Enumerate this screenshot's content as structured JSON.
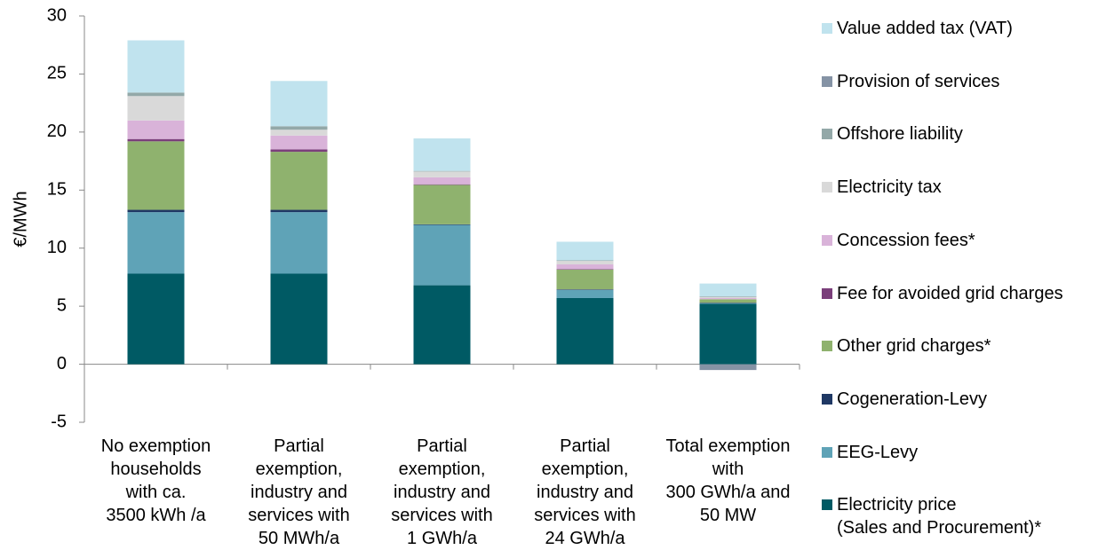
{
  "chart_data": {
    "type": "stacked-bar",
    "y_label": "€/MWh",
    "categories": [
      "No exemption\nhouseholds\nwith ca.\n3500 kWh /a",
      "Partial\nexemption,\nindustry and\nservices with\n50 MWh/a",
      "Partial\nexemption,\nindustry and\nservices with\n1 GWh/a",
      "Partial\nexemption,\nindustry and\nservices with\n24 GWh/a",
      "Total exemption\nwith\n300 GWh/a and\n50 MW"
    ],
    "series": [
      {
        "name": "Electricity price\n(Sales and Procurement)*",
        "color": "#005a64",
        "values": [
          7.8,
          7.8,
          6.8,
          5.7,
          5.2
        ]
      },
      {
        "name": "EEG-Levy",
        "color": "#5fa3b7",
        "values": [
          5.3,
          5.3,
          5.2,
          0.7,
          0.05
        ]
      },
      {
        "name": "Cogeneration-Levy",
        "color": "#1f3864",
        "values": [
          0.2,
          0.2,
          0.05,
          0.05,
          0.05
        ]
      },
      {
        "name": "Other grid charges*",
        "color": "#8fb26e",
        "values": [
          5.9,
          5.0,
          3.4,
          1.7,
          0.3
        ]
      },
      {
        "name": "Fee for avoided grid charges",
        "color": "#7b3f7b",
        "values": [
          0.2,
          0.2,
          0.05,
          0.05,
          0
        ]
      },
      {
        "name": "Concession fees*",
        "color": "#d9b3d9",
        "values": [
          1.6,
          1.2,
          0.6,
          0.4,
          0.1
        ]
      },
      {
        "name": "Electricity tax",
        "color": "#d9d9d9",
        "values": [
          2.1,
          0.5,
          0.5,
          0.3,
          0.1
        ]
      },
      {
        "name": "Offshore liability",
        "color": "#93a8a8",
        "values": [
          0.3,
          0.3,
          0.05,
          0.05,
          0.05
        ]
      },
      {
        "name": "Provision of services",
        "color": "#8593a5",
        "values": [
          0,
          0,
          0,
          0,
          -0.5
        ]
      },
      {
        "name": "Value added tax (VAT)",
        "color": "#c0e3ee",
        "values": [
          4.5,
          3.9,
          2.8,
          1.6,
          1.1
        ]
      }
    ],
    "ylim": [
      -5,
      30
    ],
    "yticks": [
      -5,
      0,
      5,
      10,
      15,
      20,
      25,
      30
    ],
    "grid": false,
    "legend": "right"
  }
}
